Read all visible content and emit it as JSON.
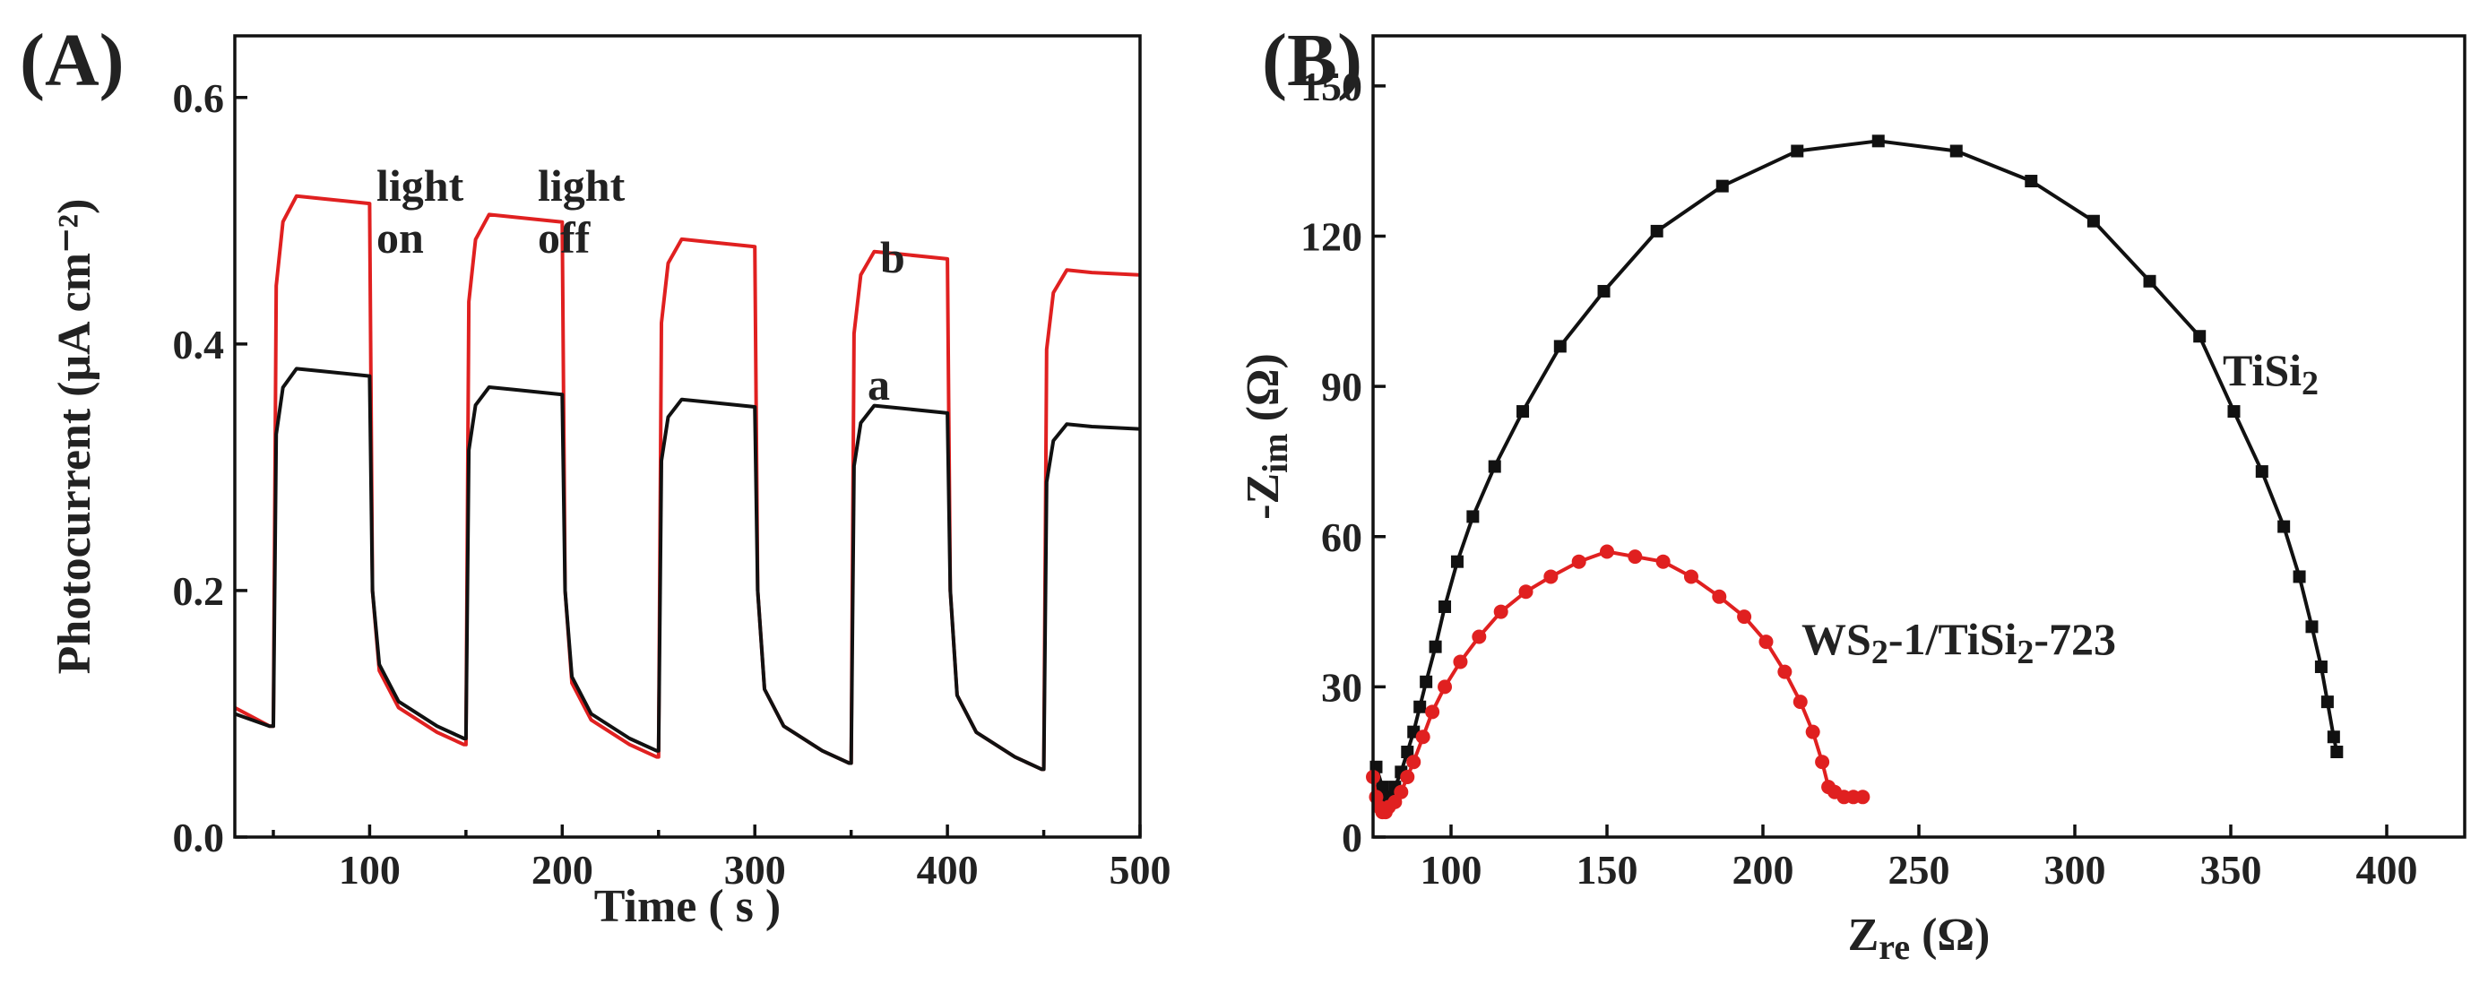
{
  "panels": {
    "a": {
      "label": "(A)",
      "xlabel": "Time ( s )",
      "ylabel": "Photocurrent (μA cm⁻²)"
    },
    "b": {
      "label": "(B)",
      "xlabel_main": "Z",
      "xlabel_sub": "re",
      "xlabel_unit": " (Ω)",
      "ylabel_main": "-Z",
      "ylabel_sub": "im",
      "ylabel_unit": " (Ω)"
    }
  },
  "annotations": {
    "light_on_1": "light",
    "light_on_2": "on",
    "light_off_1": "light",
    "light_off_2": "off",
    "series_a": "a",
    "series_b": "b",
    "tisi2_main": "TiSi",
    "tisi2_sub": "2",
    "ws2_p1": "WS",
    "ws2_p2": "2",
    "ws2_p3": "-1/TiSi",
    "ws2_p4": "2",
    "ws2_p5": "-723"
  },
  "chart_data": [
    {
      "type": "line",
      "title": "(A)",
      "xlabel": "Time ( s )",
      "ylabel": "Photocurrent (μA cm⁻²)",
      "xlim": [
        30,
        500
      ],
      "ylim": [
        0.0,
        0.65
      ],
      "xticks": [
        100,
        200,
        300,
        400,
        500
      ],
      "yticks": [
        0.0,
        0.2,
        0.4,
        0.6
      ],
      "ytick_labels": [
        "0.0",
        "0.2",
        "0.4",
        "0.6"
      ],
      "light_on_times": [
        50,
        150,
        250,
        350,
        450
      ],
      "light_off_times": [
        100,
        200,
        300,
        400
      ],
      "series": [
        {
          "name": "a",
          "color": "#111111",
          "on_levels": [
            0.38,
            0.365,
            0.355,
            0.35,
            0.335
          ],
          "off_levels": [
            0.09,
            0.08,
            0.07,
            0.06,
            0.055
          ],
          "start_level": 0.1
        },
        {
          "name": "b",
          "color": "#e02020",
          "on_levels": [
            0.52,
            0.505,
            0.485,
            0.475,
            0.46
          ],
          "off_levels": [
            0.09,
            0.075,
            0.065,
            0.06,
            0.055
          ],
          "start_level": 0.105
        }
      ]
    },
    {
      "type": "scatter",
      "title": "(B)",
      "xlabel": "Zre (Ω)",
      "ylabel": "-Zim (Ω)",
      "xlim": [
        75,
        425
      ],
      "ylim": [
        0,
        160
      ],
      "xticks": [
        100,
        150,
        200,
        250,
        300,
        350,
        400
      ],
      "yticks": [
        0,
        30,
        60,
        90,
        120,
        150
      ],
      "series": [
        {
          "name": "TiSi2",
          "color": "#111111",
          "marker": "square",
          "x": [
            76,
            78,
            80,
            82,
            84,
            86,
            88,
            90,
            92,
            95,
            98,
            102,
            107,
            114,
            123,
            135,
            149,
            166,
            187,
            211,
            237,
            262,
            286,
            306,
            324,
            340,
            351,
            360,
            367,
            372,
            376,
            379,
            381,
            383,
            384
          ],
          "y": [
            14,
            10,
            8,
            10,
            13,
            17,
            21,
            26,
            31,
            38,
            46,
            55,
            64,
            74,
            85,
            98,
            109,
            121,
            130,
            137,
            139,
            137,
            131,
            123,
            111,
            100,
            85,
            73,
            62,
            52,
            42,
            34,
            27,
            20,
            17
          ]
        },
        {
          "name": "WS2-1/TiSi2-723",
          "color": "#e02020",
          "marker": "circle",
          "x": [
            75,
            76,
            77,
            78,
            79,
            80,
            82,
            84,
            86,
            88,
            91,
            94,
            98,
            103,
            109,
            116,
            124,
            132,
            141,
            150,
            159,
            168,
            177,
            186,
            194,
            201,
            207,
            212,
            216,
            219,
            221,
            223,
            226,
            229,
            232
          ],
          "y": [
            12,
            8,
            6,
            5,
            5,
            6,
            7,
            9,
            12,
            15,
            20,
            25,
            30,
            35,
            40,
            45,
            49,
            52,
            55,
            57,
            56,
            55,
            52,
            48,
            44,
            39,
            33,
            27,
            21,
            15,
            10,
            9,
            8,
            8,
            8
          ]
        }
      ]
    }
  ]
}
